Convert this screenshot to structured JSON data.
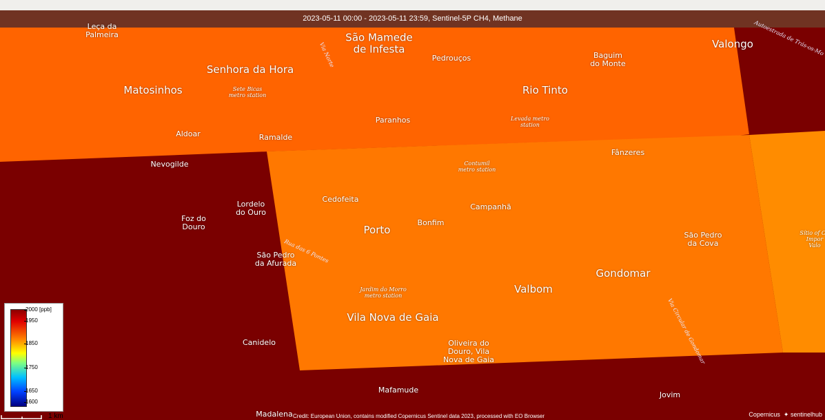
{
  "header": {
    "title": "2023-05-11 00:00 - 2023-05-11 23:59, Sentinel-5P CH4, Methane"
  },
  "colors": {
    "dark_red": "#7a0000",
    "orange": "#ff6400",
    "light_orange": "#ff8000",
    "header_bg": "#6e3c28"
  },
  "places": [
    {
      "label": "Leça da\nPalmeira",
      "size": "small"
    },
    {
      "label": "São Mamede\nde Infesta",
      "size": "large"
    },
    {
      "label": "Pedrouços",
      "size": "small"
    },
    {
      "label": "Baguim\ndo Monte",
      "size": "small"
    },
    {
      "label": "Valongo",
      "size": "large"
    },
    {
      "label": "Senhora da Hora",
      "size": "large"
    },
    {
      "label": "Matosinhos",
      "size": "large"
    },
    {
      "label": "Rio Tinto",
      "size": "large"
    },
    {
      "label": "Paranhos",
      "size": "small"
    },
    {
      "label": "Aldoar",
      "size": "small"
    },
    {
      "label": "Ramalde",
      "size": "small"
    },
    {
      "label": "Fânzeres",
      "size": "small"
    },
    {
      "label": "Nevogilde",
      "size": "small"
    },
    {
      "label": "Cedofeita",
      "size": "small"
    },
    {
      "label": "Lordelo\ndo Ouro",
      "size": "small"
    },
    {
      "label": "Foz do\nDouro",
      "size": "small"
    },
    {
      "label": "Campanhã",
      "size": "small"
    },
    {
      "label": "Bonfim",
      "size": "small"
    },
    {
      "label": "Porto",
      "size": "large"
    },
    {
      "label": "São Pedro\nda Cova",
      "size": "small"
    },
    {
      "label": "São Pedro\nda Afurada",
      "size": "small"
    },
    {
      "label": "Gondomar",
      "size": "large"
    },
    {
      "label": "Valbom",
      "size": "large"
    },
    {
      "label": "Vila Nova de Gaia",
      "size": "large"
    },
    {
      "label": "Canidelo",
      "size": "small"
    },
    {
      "label": "Oliveira do\nDouro, Vila\nNova de Gaia",
      "size": "small"
    },
    {
      "label": "Mafamude",
      "size": "small"
    },
    {
      "label": "Jovim",
      "size": "small"
    },
    {
      "label": "Madalena",
      "size": "small"
    }
  ],
  "stations": [
    {
      "label": "Sete Bicas\nmetro station"
    },
    {
      "label": "Levada metro\nstation"
    },
    {
      "label": "Contumil\nmetro station"
    },
    {
      "label": "Jardim do Morro\nmetro station"
    },
    {
      "label": "Sítio of Ou\nImpor\nValo"
    }
  ],
  "roads": [
    {
      "label": "Via Norte"
    },
    {
      "label": "Autoestrada de Trás-os-Mo"
    },
    {
      "label": "Rua das 6 Pontes"
    },
    {
      "label": "Via Circular de Gondomar"
    }
  ],
  "legend": {
    "unit_label": "2000 [ppb]",
    "ticks": [
      "1950",
      "1850",
      "1750",
      "1650",
      "1600"
    ]
  },
  "scale": {
    "label": "1 km"
  },
  "credit": "Credit: European Union, contains modified Copernicus Sentinel data 2023, processed with EO Browser",
  "logos": {
    "copernicus": "Copernicus",
    "sentinelhub": "sentinelhub"
  }
}
